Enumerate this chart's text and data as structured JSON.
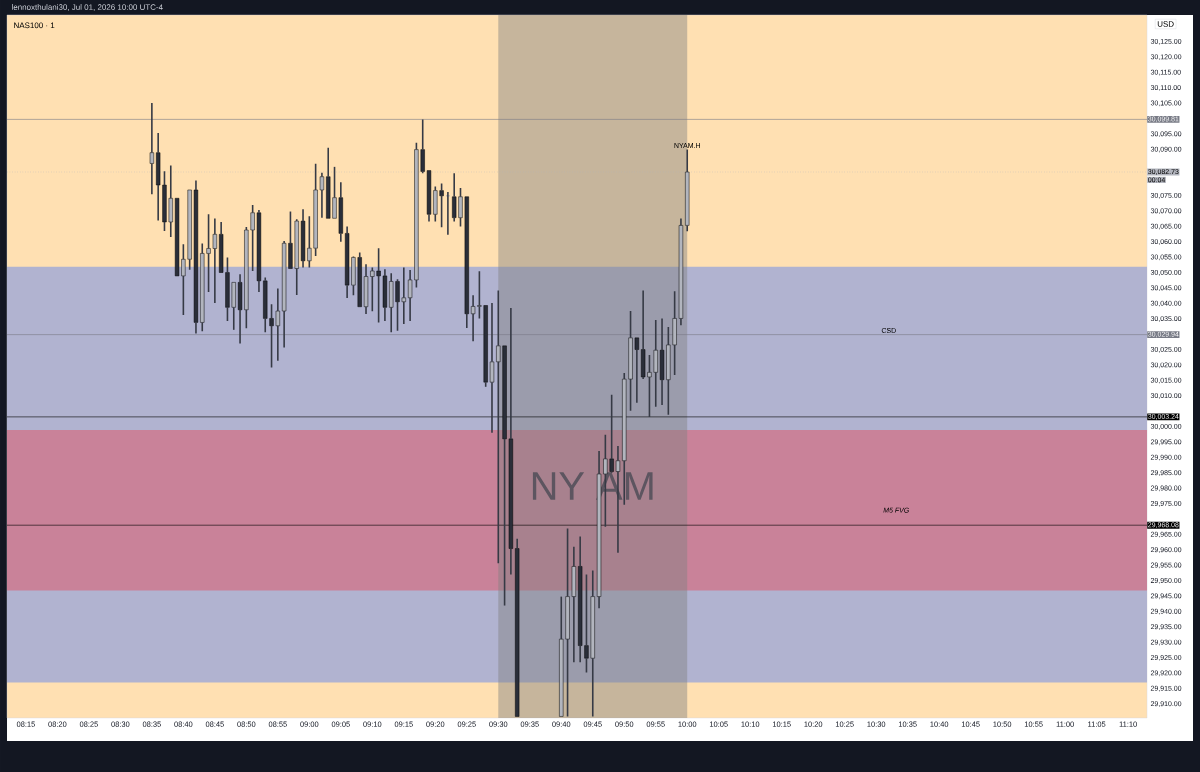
{
  "chart_data": {
    "type": "candlestick",
    "title": "NAS100 · 1",
    "subtitle": "lennoxthulani30, Jul 01, 2026 10:00 UTC-4",
    "ylabel": "USD",
    "x": [
      "2026-07-01T08:35",
      "2026-07-01T08:36",
      "2026-07-01T08:37",
      "2026-07-01T08:38",
      "2026-07-01T08:39",
      "2026-07-01T08:40",
      "2026-07-01T08:41",
      "2026-07-01T08:42",
      "2026-07-01T08:43",
      "2026-07-01T08:44",
      "2026-07-01T08:45",
      "2026-07-01T08:46",
      "2026-07-01T08:47",
      "2026-07-01T08:48",
      "2026-07-01T08:49",
      "2026-07-01T08:50",
      "2026-07-01T08:51",
      "2026-07-01T08:52",
      "2026-07-01T08:53",
      "2026-07-01T08:54",
      "2026-07-01T08:55",
      "2026-07-01T08:56",
      "2026-07-01T08:57",
      "2026-07-01T08:58",
      "2026-07-01T08:59",
      "2026-07-01T09:00",
      "2026-07-01T09:01",
      "2026-07-01T09:02",
      "2026-07-01T09:03",
      "2026-07-01T09:04",
      "2026-07-01T09:05",
      "2026-07-01T09:06",
      "2026-07-01T09:07",
      "2026-07-01T09:08",
      "2026-07-01T09:09",
      "2026-07-01T09:10",
      "2026-07-01T09:11",
      "2026-07-01T09:12",
      "2026-07-01T09:13",
      "2026-07-01T09:14",
      "2026-07-01T09:15",
      "2026-07-01T09:16",
      "2026-07-01T09:17",
      "2026-07-01T09:18",
      "2026-07-01T09:19",
      "2026-07-01T09:20",
      "2026-07-01T09:21",
      "2026-07-01T09:22",
      "2026-07-01T09:23",
      "2026-07-01T09:24",
      "2026-07-01T09:25",
      "2026-07-01T09:26",
      "2026-07-01T09:27",
      "2026-07-01T09:28",
      "2026-07-01T09:29",
      "2026-07-01T09:30",
      "2026-07-01T09:31",
      "2026-07-01T09:32",
      "2026-07-01T09:33",
      "2026-07-01T09:40",
      "2026-07-01T09:41",
      "2026-07-01T09:42",
      "2026-07-01T09:43",
      "2026-07-01T09:44",
      "2026-07-01T09:45",
      "2026-07-01T09:46",
      "2026-07-01T09:47",
      "2026-07-01T09:48",
      "2026-07-01T09:49",
      "2026-07-01T09:50",
      "2026-07-01T09:51",
      "2026-07-01T09:52",
      "2026-07-01T09:53",
      "2026-07-01T09:54",
      "2026-07-01T09:55",
      "2026-07-01T09:56",
      "2026-07-01T09:57",
      "2026-07-01T09:58",
      "2026-07-01T09:59",
      "2026-07-01T10:00"
    ],
    "ohlc": [
      [
        30085.5,
        30105.1,
        30075.5,
        30089.0
      ],
      [
        30089.0,
        30095.4,
        30067.0,
        30078.5
      ],
      [
        30078.5,
        30083.0,
        30063.6,
        30066.5
      ],
      [
        30066.5,
        30084.8,
        30061.6,
        30074.2
      ],
      [
        30074.2,
        30074.2,
        30049.0,
        30049.0
      ],
      [
        30049.0,
        30059.3,
        30036.3,
        30054.4
      ],
      [
        30054.4,
        30076.9,
        30051.0,
        30076.9
      ],
      [
        30076.9,
        30080.0,
        30030.3,
        30033.9
      ],
      [
        30033.9,
        30059.5,
        30031.0,
        30056.3
      ],
      [
        30056.3,
        30069.0,
        30043.8,
        30057.9
      ],
      [
        30057.9,
        30067.6,
        30040.2,
        30062.5
      ],
      [
        30062.5,
        30066.5,
        30050.1,
        30050.1
      ],
      [
        30050.1,
        30055.0,
        30034.4,
        30038.8
      ],
      [
        30038.8,
        30046.9,
        30031.5,
        30046.9
      ],
      [
        30046.9,
        30049.5,
        30027.1,
        30038.0
      ],
      [
        30038.0,
        30064.9,
        30032.0,
        30063.9
      ],
      [
        30063.9,
        30072.0,
        30050.6,
        30069.5
      ],
      [
        30069.5,
        30070.4,
        30043.8,
        30047.4
      ],
      [
        30047.4,
        30048.5,
        30030.7,
        30035.2
      ],
      [
        30035.2,
        30039.8,
        30019.3,
        30032.8
      ],
      [
        30032.8,
        30044.9,
        30021.5,
        30037.6
      ],
      [
        30037.6,
        30060.3,
        30025.8,
        30059.6
      ],
      [
        30059.6,
        30069.9,
        30051.4,
        30051.4
      ],
      [
        30051.4,
        30067.4,
        30042.8,
        30066.8
      ],
      [
        30066.8,
        30070.6,
        30051.7,
        30053.9
      ],
      [
        30053.9,
        30068.4,
        30051.7,
        30058.0
      ],
      [
        30058.0,
        30085.4,
        30055.5,
        30076.9
      ],
      [
        30076.9,
        30082.5,
        30067.9,
        30081.2
      ],
      [
        30081.2,
        30090.6,
        30067.7,
        30067.7
      ],
      [
        30067.7,
        30084.4,
        30067.7,
        30074.4
      ],
      [
        30074.4,
        30079.4,
        30060.1,
        30062.8
      ],
      [
        30062.8,
        30065.0,
        30041.8,
        30046.0
      ],
      [
        30046.0,
        30055.3,
        30042.7,
        30055.0
      ],
      [
        30055.0,
        30056.6,
        30039.0,
        30039.0
      ],
      [
        30039.0,
        30052.8,
        30036.6,
        30048.8
      ],
      [
        30048.8,
        30051.7,
        30037.5,
        30050.6
      ],
      [
        30050.6,
        30058.0,
        30033.9,
        30049.0
      ],
      [
        30049.0,
        30051.2,
        30034.4,
        30038.8
      ],
      [
        30038.8,
        30049.9,
        30030.7,
        30047.2
      ],
      [
        30047.2,
        30047.9,
        30031.2,
        30040.6
      ],
      [
        30040.6,
        30051.7,
        30033.4,
        30041.9
      ],
      [
        30041.9,
        30050.9,
        30034.4,
        30047.7
      ],
      [
        30047.7,
        30092.2,
        30045.2,
        30090.0
      ],
      [
        30090.0,
        30099.8,
        30082.3,
        30082.9
      ],
      [
        30083.2,
        30083.2,
        30066.7,
        30069.0
      ],
      [
        30069.0,
        30078.0,
        30066.7,
        30076.7
      ],
      [
        30076.7,
        30079.0,
        30064.8,
        30075.0
      ],
      [
        30075.0,
        30076.2,
        30062.4,
        30075.0
      ],
      [
        30074.7,
        30082.3,
        30066.7,
        30067.9
      ],
      [
        30067.9,
        30077.5,
        30065.0,
        30074.7
      ],
      [
        30074.7,
        30074.7,
        30032.1,
        30036.7
      ],
      [
        30036.7,
        30042.7,
        30027.8,
        30039.1
      ],
      [
        30039.1,
        30050.5,
        30035.2,
        30039.4
      ],
      [
        30039.4,
        30039.4,
        30013.0,
        30014.5
      ],
      [
        30014.5,
        30040.2,
        29998.1,
        30021.1
      ],
      [
        30021.1,
        30044.3,
        29955.7,
        30026.3
      ],
      [
        30026.3,
        30026.3,
        29942.0,
        29996.1
      ],
      [
        29996.1,
        30038.6,
        29952.1,
        29960.5
      ],
      [
        29960.5,
        29963.7,
        29906.0,
        29906.0
      ],
      [
        29906.0,
        29944.9,
        29906.0,
        29931.1
      ],
      [
        29931.1,
        29967.0,
        29906.0,
        29944.9
      ],
      [
        29944.9,
        29961.1,
        29923.6,
        29954.7
      ],
      [
        29954.7,
        29964.4,
        29923.6,
        29929.0
      ],
      [
        29929.0,
        29952.1,
        29920.3,
        29924.9
      ],
      [
        29924.9,
        29953.4,
        29906.0,
        29944.9
      ],
      [
        29944.9,
        29992.2,
        29941.1,
        29984.7
      ],
      [
        29984.7,
        29997.4,
        29967.6,
        29989.6
      ],
      [
        29989.6,
        30010.4,
        29985.1,
        29985.5
      ],
      [
        29985.5,
        29993.8,
        29959.1,
        29989.0
      ],
      [
        29989.0,
        30017.5,
        29974.7,
        30015.5
      ],
      [
        30015.5,
        30037.6,
        30005.2,
        30028.9
      ],
      [
        30028.9,
        30028.9,
        30007.8,
        30025.1
      ],
      [
        30025.1,
        30044.3,
        30015.5,
        30016.2
      ],
      [
        30016.2,
        30023.3,
        30003.2,
        30017.7
      ],
      [
        30017.7,
        30034.7,
        30006.5,
        30024.9
      ],
      [
        30024.9,
        30035.2,
        30007.1,
        30015.3
      ],
      [
        30015.3,
        30032.4,
        30003.9,
        30026.6
      ],
      [
        30026.6,
        30044.0,
        30016.8,
        30035.2
      ],
      [
        30035.2,
        30067.6,
        30033.0,
        30065.4
      ],
      [
        30065.4,
        30090.0,
        30063.5,
        30082.73
      ]
    ],
    "colors": [
      "#b2b5be",
      "#2a2e39",
      "#2a2e39",
      "#b2b5be",
      "#2a2e39",
      "#b2b5be",
      "#b2b5be",
      "#2a2e39",
      "#b2b5be",
      "#b2b5be",
      "#b2b5be",
      "#2a2e39",
      "#2a2e39",
      "#b2b5be",
      "#2a2e39",
      "#b2b5be",
      "#b2b5be",
      "#2a2e39",
      "#2a2e39",
      "#2a2e39",
      "#b2b5be",
      "#b2b5be",
      "#2a2e39",
      "#b2b5be",
      "#2a2e39",
      "#b2b5be",
      "#b2b5be",
      "#b2b5be",
      "#2a2e39",
      "#b2b5be",
      "#2a2e39",
      "#2a2e39",
      "#b2b5be",
      "#2a2e39",
      "#b2b5be",
      "#b2b5be",
      "#2a2e39",
      "#2a2e39",
      "#b2b5be",
      "#2a2e39",
      "#b2b5be",
      "#b2b5be",
      "#b2b5be",
      "#2a2e39",
      "#2a2e39",
      "#b2b5be",
      "#2a2e39",
      "#b2b5be",
      "#2a2e39",
      "#b2b5be",
      "#2a2e39",
      "#b2b5be",
      "#b2b5be",
      "#2a2e39",
      "#b2b5be",
      "#b2b5be",
      "#2a2e39",
      "#2a2e39",
      "#2a2e39",
      "#b2b5be",
      "#b2b5be",
      "#b2b5be",
      "#2a2e39",
      "#2a2e39",
      "#b2b5be",
      "#b2b5be",
      "#b2b5be",
      "#2a2e39",
      "#b2b5be",
      "#b2b5be",
      "#b2b5be",
      "#2a2e39",
      "#2a2e39",
      "#b2b5be",
      "#b2b5be",
      "#2a2e39",
      "#b2b5be",
      "#b2b5be",
      "#b2b5be",
      "#b2b5be"
    ],
    "xlim": [
      "2026-07-01T08:12",
      "2026-07-01T11:13"
    ],
    "ylim": [
      29905.5,
      30133.7
    ],
    "xticks": [
      {
        "value": "2026-07-01T08:15",
        "label": "08:15"
      },
      {
        "value": "2026-07-01T08:20",
        "label": "08:20"
      },
      {
        "value": "2026-07-01T08:25",
        "label": "08:25"
      },
      {
        "value": "2026-07-01T08:30",
        "label": "08:30"
      },
      {
        "value": "2026-07-01T08:35",
        "label": "08:35"
      },
      {
        "value": "2026-07-01T08:40",
        "label": "08:40"
      },
      {
        "value": "2026-07-01T08:45",
        "label": "08:45"
      },
      {
        "value": "2026-07-01T08:50",
        "label": "08:50"
      },
      {
        "value": "2026-07-01T08:55",
        "label": "08:55"
      },
      {
        "value": "2026-07-01T09:00",
        "label": "09:00"
      },
      {
        "value": "2026-07-01T09:05",
        "label": "09:05"
      },
      {
        "value": "2026-07-01T09:10",
        "label": "09:10"
      },
      {
        "value": "2026-07-01T09:15",
        "label": "09:15"
      },
      {
        "value": "2026-07-01T09:20",
        "label": "09:20"
      },
      {
        "value": "2026-07-01T09:25",
        "label": "09:25"
      },
      {
        "value": "2026-07-01T09:30",
        "label": "09:30"
      },
      {
        "value": "2026-07-01T09:35",
        "label": "09:35"
      },
      {
        "value": "2026-07-01T09:40",
        "label": "09:40"
      },
      {
        "value": "2026-07-01T09:45",
        "label": "09:45"
      },
      {
        "value": "2026-07-01T09:50",
        "label": "09:50"
      },
      {
        "value": "2026-07-01T09:55",
        "label": "09:55"
      },
      {
        "value": "2026-07-01T10:00",
        "label": "10:00"
      },
      {
        "value": "2026-07-01T10:05",
        "label": "10:05"
      },
      {
        "value": "2026-07-01T10:10",
        "label": "10:10"
      },
      {
        "value": "2026-07-01T10:15",
        "label": "10:15"
      },
      {
        "value": "2026-07-01T10:20",
        "label": "10:20"
      },
      {
        "value": "2026-07-01T10:25",
        "label": "10:25"
      },
      {
        "value": "2026-07-01T10:30",
        "label": "10:30"
      },
      {
        "value": "2026-07-01T10:35",
        "label": "10:35"
      },
      {
        "value": "2026-07-01T10:40",
        "label": "10:40"
      },
      {
        "value": "2026-07-01T10:45",
        "label": "10:45"
      },
      {
        "value": "2026-07-01T10:50",
        "label": "10:50"
      },
      {
        "value": "2026-07-01T10:55",
        "label": "10:55"
      },
      {
        "value": "2026-07-01T11:00",
        "label": "11:00"
      },
      {
        "value": "2026-07-01T11:05",
        "label": "11:05"
      },
      {
        "value": "2026-07-01T11:10",
        "label": "11:10"
      }
    ],
    "yticks": [
      {
        "value": 29910,
        "label": "29,910.00"
      },
      {
        "value": 29915,
        "label": "29,915.00"
      },
      {
        "value": 29920,
        "label": "29,920.00"
      },
      {
        "value": 29925,
        "label": "29,925.00"
      },
      {
        "value": 29930,
        "label": "29,930.00"
      },
      {
        "value": 29935,
        "label": "29,935.00"
      },
      {
        "value": 29940,
        "label": "29,940.00"
      },
      {
        "value": 29945,
        "label": "29,945.00"
      },
      {
        "value": 29950,
        "label": "29,950.00"
      },
      {
        "value": 29955,
        "label": "29,955.00"
      },
      {
        "value": 29960,
        "label": "29,960.00"
      },
      {
        "value": 29965,
        "label": "29,965.00"
      },
      {
        "value": 29975,
        "label": "29,975.00"
      },
      {
        "value": 29980,
        "label": "29,980.00"
      },
      {
        "value": 29985,
        "label": "29,985.00"
      },
      {
        "value": 29990,
        "label": "29,990.00"
      },
      {
        "value": 29995,
        "label": "29,995.00"
      },
      {
        "value": 30000,
        "label": "30,000.00"
      },
      {
        "value": 30010,
        "label": "30,010.00"
      },
      {
        "value": 30015,
        "label": "30,015.00"
      },
      {
        "value": 30020,
        "label": "30,020.00"
      },
      {
        "value": 30025,
        "label": "30,025.00"
      },
      {
        "value": 30035,
        "label": "30,035.00"
      },
      {
        "value": 30040,
        "label": "30,040.00"
      },
      {
        "value": 30045,
        "label": "30,045.00"
      },
      {
        "value": 30050,
        "label": "30,050.00"
      },
      {
        "value": 30055,
        "label": "30,055.00"
      },
      {
        "value": 30060,
        "label": "30,060.00"
      },
      {
        "value": 30065,
        "label": "30,065.00"
      },
      {
        "value": 30070,
        "label": "30,070.00"
      },
      {
        "value": 30075,
        "label": "30,075.00"
      },
      {
        "value": 30090,
        "label": "30,090.00"
      },
      {
        "value": 30095,
        "label": "30,095.00"
      },
      {
        "value": 30105,
        "label": "30,105.00"
      },
      {
        "value": 30110,
        "label": "30,110.00"
      },
      {
        "value": 30115,
        "label": "30,115.00"
      },
      {
        "value": 30120,
        "label": "30,120.00"
      },
      {
        "value": 30125,
        "label": "30,125.00"
      }
    ],
    "bands": [
      {
        "axis": "y",
        "from": 29917,
        "to": 30052,
        "color": "#b1b3d0"
      },
      {
        "axis": "y",
        "from": 29946.9,
        "to": 29999,
        "label": "M5 FVG",
        "color": "#c98299"
      },
      {
        "axis": "x",
        "from": "2026-07-01T09:30",
        "to": "2026-07-01T10:00",
        "label": "NY AM",
        "color": "#808080"
      }
    ],
    "ref_lines": [
      {
        "axis": "y",
        "value": 30099.81,
        "label": "30,099.81",
        "color": "#787b86",
        "line_style": "solid"
      },
      {
        "axis": "y",
        "value": 30082.73,
        "label": "30,082.73",
        "color": "#b2b5be",
        "line_style": "dotted"
      },
      {
        "axis": "y",
        "value": 30029.94,
        "label": "30,029.94",
        "color": "#787b86",
        "line_style": "solid"
      },
      {
        "axis": "y",
        "value": 30003.24,
        "label": "30,003.24",
        "color": "#000000",
        "line_style": "solid"
      },
      {
        "axis": "y",
        "value": 29968.08,
        "label": "29,968.08",
        "color": "#000000",
        "line_style": "solid"
      }
    ],
    "annotations": [
      {
        "text": "NYAM.H",
        "x": "2026-07-01T10:00",
        "y": 30090.0
      },
      {
        "text": "CSD",
        "x": "2026-07-01T10:32",
        "y": 30029.94
      },
      "00:04"
    ]
  }
}
